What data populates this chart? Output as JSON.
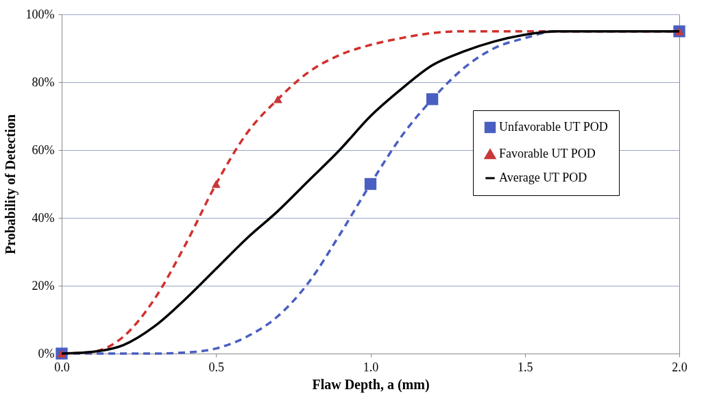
{
  "chart_data": {
    "type": "line",
    "xlabel": "Flaw Depth, a (mm)",
    "ylabel": "Probability of Detection",
    "xlim": [
      0,
      2
    ],
    "xticks": [
      {
        "value": 0,
        "label": "0.0"
      },
      {
        "value": 0.5,
        "label": "0.5"
      },
      {
        "value": 1,
        "label": "1.0"
      },
      {
        "value": 1.5,
        "label": "1.5"
      },
      {
        "value": 2,
        "label": "2.0"
      }
    ],
    "ylim": [
      0,
      100
    ],
    "yticks": [
      {
        "value": 0,
        "label": "0%"
      },
      {
        "value": 20,
        "label": "20%"
      },
      {
        "value": 40,
        "label": "40%"
      },
      {
        "value": 60,
        "label": "60%"
      },
      {
        "value": 80,
        "label": "80%"
      },
      {
        "value": 100,
        "label": "100%"
      }
    ],
    "grid": "y",
    "legend": "right",
    "series": [
      {
        "color": "#4a5fc1",
        "line_style": "dashed",
        "x": [
          0,
          0.2,
          0.3,
          0.4,
          0.5,
          0.6,
          0.7,
          0.8,
          0.9,
          1.0,
          1.1,
          1.2,
          1.3,
          1.4,
          1.5,
          1.6,
          2.0
        ],
        "values": [
          0,
          0,
          0,
          0.3,
          1.5,
          5,
          11,
          21,
          35,
          50,
          64,
          75,
          84,
          90,
          93,
          95,
          95
        ]
      },
      {
        "color": "#d0312d",
        "line_style": "dashed",
        "x": [
          0,
          0.1,
          0.2,
          0.3,
          0.4,
          0.5,
          0.6,
          0.7,
          0.8,
          0.9,
          1.0,
          1.1,
          1.2,
          1.3,
          2.0
        ],
        "values": [
          0,
          0.5,
          5,
          16,
          32,
          50,
          65,
          75,
          83,
          88,
          91,
          93,
          94.5,
          95,
          95
        ]
      },
      {
        "name": "Unfavorable UT POD",
        "type": "scatter",
        "marker": "square",
        "color": "#4a5fc1",
        "x": [
          0,
          1.0,
          1.2,
          2.0
        ],
        "values": [
          0,
          50,
          75,
          95
        ]
      },
      {
        "name": "Favorable UT POD",
        "type": "scatter",
        "marker": "triangle",
        "color": "#c8383a",
        "x": [
          0,
          0.5,
          0.7,
          2.0
        ],
        "values": [
          0,
          50,
          75,
          95
        ]
      },
      {
        "name": "Average UT POD",
        "color": "#000000",
        "line_style": "solid",
        "x": [
          0,
          0.1,
          0.2,
          0.3,
          0.4,
          0.5,
          0.6,
          0.7,
          0.8,
          0.9,
          1.0,
          1.1,
          1.2,
          1.3,
          1.4,
          1.5,
          1.6,
          2.0
        ],
        "values": [
          0,
          0.5,
          2.5,
          8,
          16,
          25,
          34,
          42,
          51,
          60,
          70,
          78,
          85,
          89,
          92,
          94,
          95,
          95
        ]
      }
    ]
  }
}
